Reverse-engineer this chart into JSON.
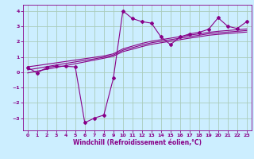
{
  "title": "",
  "xlabel": "Windchill (Refroidissement éolien,°C)",
  "background_color": "#cceeff",
  "grid_color": "#aaccbb",
  "line_color": "#880088",
  "x_data": [
    0,
    1,
    2,
    3,
    4,
    5,
    6,
    7,
    8,
    9,
    10,
    11,
    12,
    13,
    14,
    15,
    16,
    17,
    18,
    19,
    20,
    21,
    22,
    23
  ],
  "y_main": [
    0.3,
    -0.05,
    0.3,
    0.4,
    0.38,
    0.35,
    -3.3,
    -3.0,
    -2.8,
    -0.4,
    4.0,
    3.5,
    3.3,
    3.2,
    2.3,
    1.8,
    2.3,
    2.5,
    2.6,
    2.8,
    3.55,
    3.0,
    2.85,
    3.3
  ],
  "y_line1": [
    0.35,
    0.43,
    0.52,
    0.61,
    0.7,
    0.79,
    0.88,
    0.97,
    1.06,
    1.2,
    1.52,
    1.7,
    1.88,
    2.02,
    2.12,
    2.22,
    2.32,
    2.42,
    2.5,
    2.6,
    2.67,
    2.72,
    2.77,
    2.82
  ],
  "y_line2": [
    0.15,
    0.25,
    0.36,
    0.47,
    0.57,
    0.67,
    0.77,
    0.87,
    0.98,
    1.12,
    1.43,
    1.6,
    1.77,
    1.92,
    2.02,
    2.12,
    2.22,
    2.32,
    2.41,
    2.51,
    2.57,
    2.62,
    2.67,
    2.72
  ],
  "y_line3": [
    -0.05,
    0.07,
    0.19,
    0.31,
    0.43,
    0.55,
    0.67,
    0.79,
    0.91,
    1.04,
    1.34,
    1.5,
    1.67,
    1.82,
    1.92,
    2.02,
    2.12,
    2.22,
    2.31,
    2.41,
    2.47,
    2.52,
    2.57,
    2.62
  ],
  "ylim": [
    -3.8,
    4.4
  ],
  "xlim": [
    -0.5,
    23.5
  ],
  "yticks": [
    -3,
    -2,
    -1,
    0,
    1,
    2,
    3,
    4
  ],
  "xticks": [
    0,
    1,
    2,
    3,
    4,
    5,
    6,
    7,
    8,
    9,
    10,
    11,
    12,
    13,
    14,
    15,
    16,
    17,
    18,
    19,
    20,
    21,
    22,
    23
  ],
  "marker": "D",
  "markersize": 2.0,
  "linewidth": 0.8,
  "tick_fontsize": 4.5,
  "xlabel_fontsize": 5.5
}
